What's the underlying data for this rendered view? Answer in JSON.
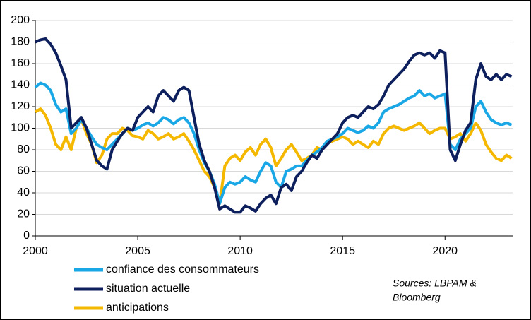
{
  "chart_data": {
    "type": "line",
    "x": [
      2000,
      2000.25,
      2000.5,
      2000.75,
      2001,
      2001.25,
      2001.5,
      2001.75,
      2002,
      2002.25,
      2002.5,
      2002.75,
      2003,
      2003.25,
      2003.5,
      2003.75,
      2004,
      2004.25,
      2004.5,
      2004.75,
      2005,
      2005.25,
      2005.5,
      2005.75,
      2006,
      2006.25,
      2006.5,
      2006.75,
      2007,
      2007.25,
      2007.5,
      2007.75,
      2008,
      2008.25,
      2008.5,
      2008.75,
      2009,
      2009.25,
      2009.5,
      2009.75,
      2010,
      2010.25,
      2010.5,
      2010.75,
      2011,
      2011.25,
      2011.5,
      2011.75,
      2012,
      2012.25,
      2012.5,
      2012.75,
      2013,
      2013.25,
      2013.5,
      2013.75,
      2014,
      2014.25,
      2014.5,
      2014.75,
      2015,
      2015.25,
      2015.5,
      2015.75,
      2016,
      2016.25,
      2016.5,
      2016.75,
      2017,
      2017.25,
      2017.5,
      2017.75,
      2018,
      2018.25,
      2018.5,
      2018.75,
      2019,
      2019.25,
      2019.5,
      2019.75,
      2020,
      2020.25,
      2020.5,
      2020.75,
      2021,
      2021.25,
      2021.5,
      2021.75,
      2022,
      2022.25,
      2022.5,
      2022.75,
      2023,
      2023.25
    ],
    "series": [
      {
        "name": "confiance des consommateurs",
        "color": "#1aa7e6",
        "values": [
          138,
          142,
          140,
          135,
          122,
          115,
          118,
          95,
          100,
          108,
          100,
          92,
          85,
          82,
          80,
          85,
          90,
          95,
          100,
          98,
          100,
          103,
          105,
          102,
          105,
          110,
          108,
          104,
          108,
          110,
          105,
          95,
          80,
          68,
          60,
          48,
          30,
          45,
          50,
          48,
          50,
          55,
          52,
          50,
          60,
          68,
          65,
          50,
          45,
          60,
          62,
          65,
          65,
          70,
          75,
          78,
          82,
          88,
          90,
          92,
          95,
          100,
          98,
          96,
          98,
          102,
          100,
          105,
          115,
          118,
          120,
          122,
          125,
          128,
          130,
          135,
          130,
          132,
          128,
          130,
          132,
          85,
          80,
          90,
          95,
          100,
          120,
          125,
          115,
          108,
          105,
          103,
          105,
          103
        ]
      },
      {
        "name": "situation actuelle",
        "color": "#0d1f5c",
        "values": [
          180,
          182,
          183,
          178,
          170,
          158,
          145,
          100,
          105,
          110,
          100,
          85,
          70,
          65,
          62,
          80,
          88,
          95,
          100,
          98,
          110,
          115,
          120,
          115,
          130,
          135,
          130,
          125,
          135,
          138,
          135,
          110,
          85,
          70,
          60,
          45,
          25,
          28,
          25,
          22,
          22,
          28,
          26,
          23,
          30,
          35,
          38,
          30,
          45,
          48,
          42,
          55,
          60,
          68,
          75,
          72,
          80,
          85,
          90,
          95,
          105,
          110,
          112,
          110,
          115,
          120,
          118,
          122,
          130,
          140,
          145,
          150,
          155,
          162,
          168,
          170,
          168,
          170,
          165,
          172,
          170,
          80,
          70,
          85,
          98,
          105,
          145,
          160,
          148,
          145,
          150,
          145,
          150,
          148
        ]
      },
      {
        "name": "anticipations",
        "color": "#f5b800",
        "values": [
          115,
          118,
          112,
          100,
          85,
          80,
          92,
          80,
          100,
          108,
          95,
          85,
          68,
          75,
          90,
          95,
          95,
          100,
          98,
          93,
          92,
          90,
          98,
          95,
          90,
          92,
          95,
          90,
          92,
          95,
          88,
          80,
          70,
          60,
          55,
          45,
          30,
          65,
          72,
          75,
          70,
          78,
          82,
          75,
          85,
          90,
          82,
          65,
          72,
          80,
          85,
          78,
          70,
          72,
          75,
          82,
          80,
          86,
          88,
          90,
          92,
          90,
          85,
          88,
          85,
          82,
          88,
          85,
          95,
          100,
          102,
          100,
          98,
          100,
          102,
          105,
          100,
          95,
          98,
          100,
          100,
          90,
          92,
          95,
          88,
          95,
          105,
          98,
          85,
          78,
          72,
          70,
          75,
          72
        ]
      }
    ],
    "xlim": [
      2000,
      2023.3
    ],
    "ylim": [
      0,
      200
    ],
    "xticks": [
      2000,
      2005,
      2010,
      2015,
      2020
    ],
    "yticks": [
      0,
      20,
      40,
      60,
      80,
      100,
      120,
      140,
      160,
      180,
      200
    ],
    "grid": true,
    "source": [
      "Sources: LBPAM &",
      "Bloomberg"
    ]
  }
}
